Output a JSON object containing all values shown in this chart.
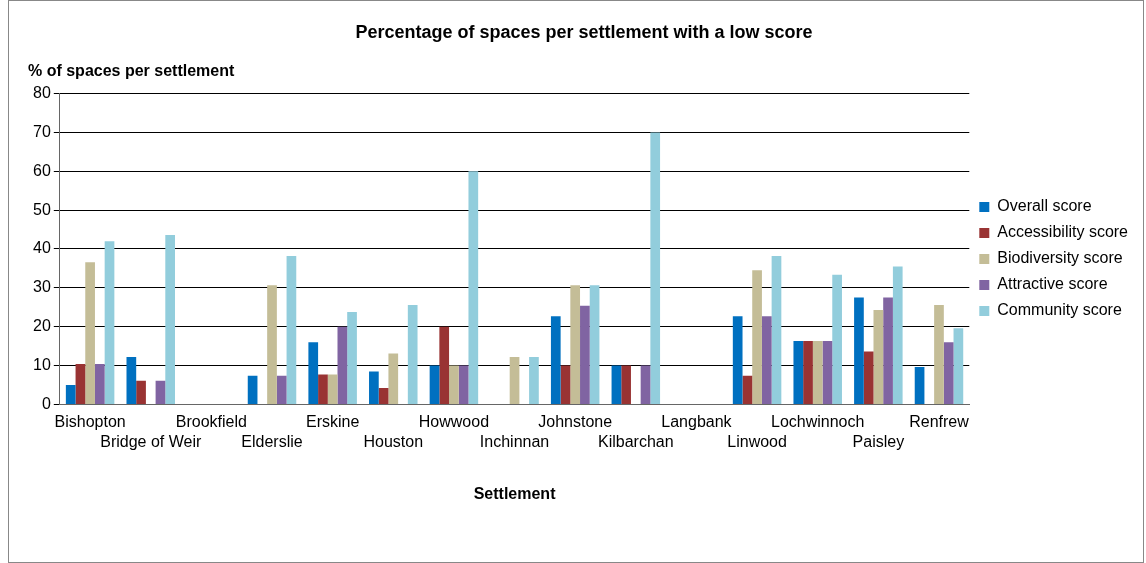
{
  "chart_data": {
    "type": "bar",
    "title": "Percentage of spaces per settlement with a low score",
    "xlabel": "Settlement",
    "ylabel": "% of spaces per settlement",
    "categories": [
      "Bishopton",
      "Bridge of Weir",
      "Brookfield",
      "Elderslie",
      "Erskine",
      "Houston",
      "Howwood",
      "Inchinnan",
      "Johnstone",
      "Kilbarchan",
      "Langbank",
      "Linwood",
      "Lochwinnoch",
      "Paisley",
      "Renfrew"
    ],
    "series": [
      {
        "name": "Overall score",
        "color": "#0070c0",
        "values": [
          5,
          12.2,
          0,
          7.4,
          16,
          8.5,
          10,
          0,
          22.7,
          10,
          0,
          22.7,
          16.3,
          27.5,
          9.6
        ]
      },
      {
        "name": "Accessibility score",
        "color": "#993333",
        "values": [
          10.4,
          6.1,
          0,
          0,
          7.7,
          4.2,
          20,
          0,
          10,
          10,
          0,
          7.4,
          16.3,
          13.6,
          0
        ]
      },
      {
        "name": "Biodiversity score",
        "color": "#c4bd97",
        "values": [
          36.6,
          0,
          0,
          30.7,
          7.7,
          13.1,
          10,
          12.2,
          30.7,
          0,
          0,
          34.5,
          16.3,
          24.3,
          25.6
        ]
      },
      {
        "name": "Attractive score",
        "color": "#8064a2",
        "values": [
          10.4,
          6.1,
          0,
          7.4,
          20,
          0,
          10,
          0,
          25.4,
          10,
          0,
          22.7,
          16.3,
          27.5,
          16
        ]
      },
      {
        "name": "Community score",
        "color": "#92cddc",
        "values": [
          42,
          43.6,
          0,
          38.2,
          23.8,
          25.6,
          60,
          12.2,
          30.7,
          70,
          0,
          38.2,
          33.4,
          35.5,
          19.6
        ]
      }
    ],
    "ylim": [
      0,
      80
    ],
    "yticks": [
      0,
      10,
      20,
      30,
      40,
      50,
      60,
      70,
      80
    ],
    "grid": "y",
    "legend": "right"
  }
}
